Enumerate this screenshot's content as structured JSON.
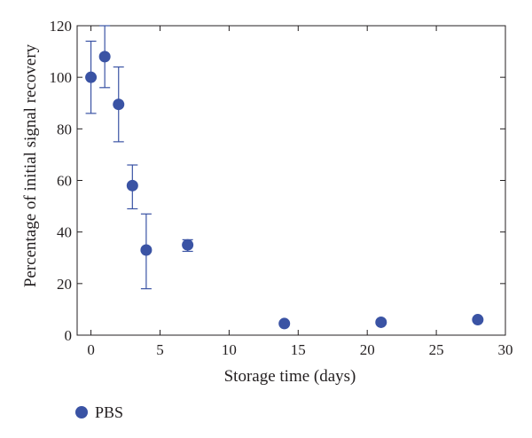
{
  "chart_data": {
    "type": "scatter",
    "xlabel": "Storage time (days)",
    "ylabel": "Percentage of initial signal recovery",
    "xlim": [
      -1,
      30
    ],
    "ylim": [
      0,
      120
    ],
    "xticks": [
      0,
      5,
      10,
      15,
      20,
      25,
      30
    ],
    "yticks": [
      0,
      20,
      40,
      60,
      80,
      100,
      120
    ],
    "grid": false,
    "legend_position": "bottom-left, below plot",
    "series": [
      {
        "name": "PBS",
        "color": "#3a53a4",
        "marker": "circle",
        "points": [
          {
            "x": 0,
            "y": 100,
            "err_low": 86,
            "err_high": 114
          },
          {
            "x": 1,
            "y": 108,
            "err_low": 96,
            "err_high": 120
          },
          {
            "x": 2,
            "y": 89.5,
            "err_low": 75,
            "err_high": 104
          },
          {
            "x": 3,
            "y": 58,
            "err_low": 49,
            "err_high": 66
          },
          {
            "x": 4,
            "y": 33,
            "err_low": 18,
            "err_high": 47
          },
          {
            "x": 7,
            "y": 35,
            "err_low": 32.5,
            "err_high": 37
          },
          {
            "x": 14,
            "y": 4.5,
            "err_low": null,
            "err_high": null
          },
          {
            "x": 21,
            "y": 5,
            "err_low": null,
            "err_high": null
          },
          {
            "x": 28,
            "y": 6,
            "err_low": 5.5,
            "err_high": 6.5
          }
        ]
      }
    ]
  }
}
